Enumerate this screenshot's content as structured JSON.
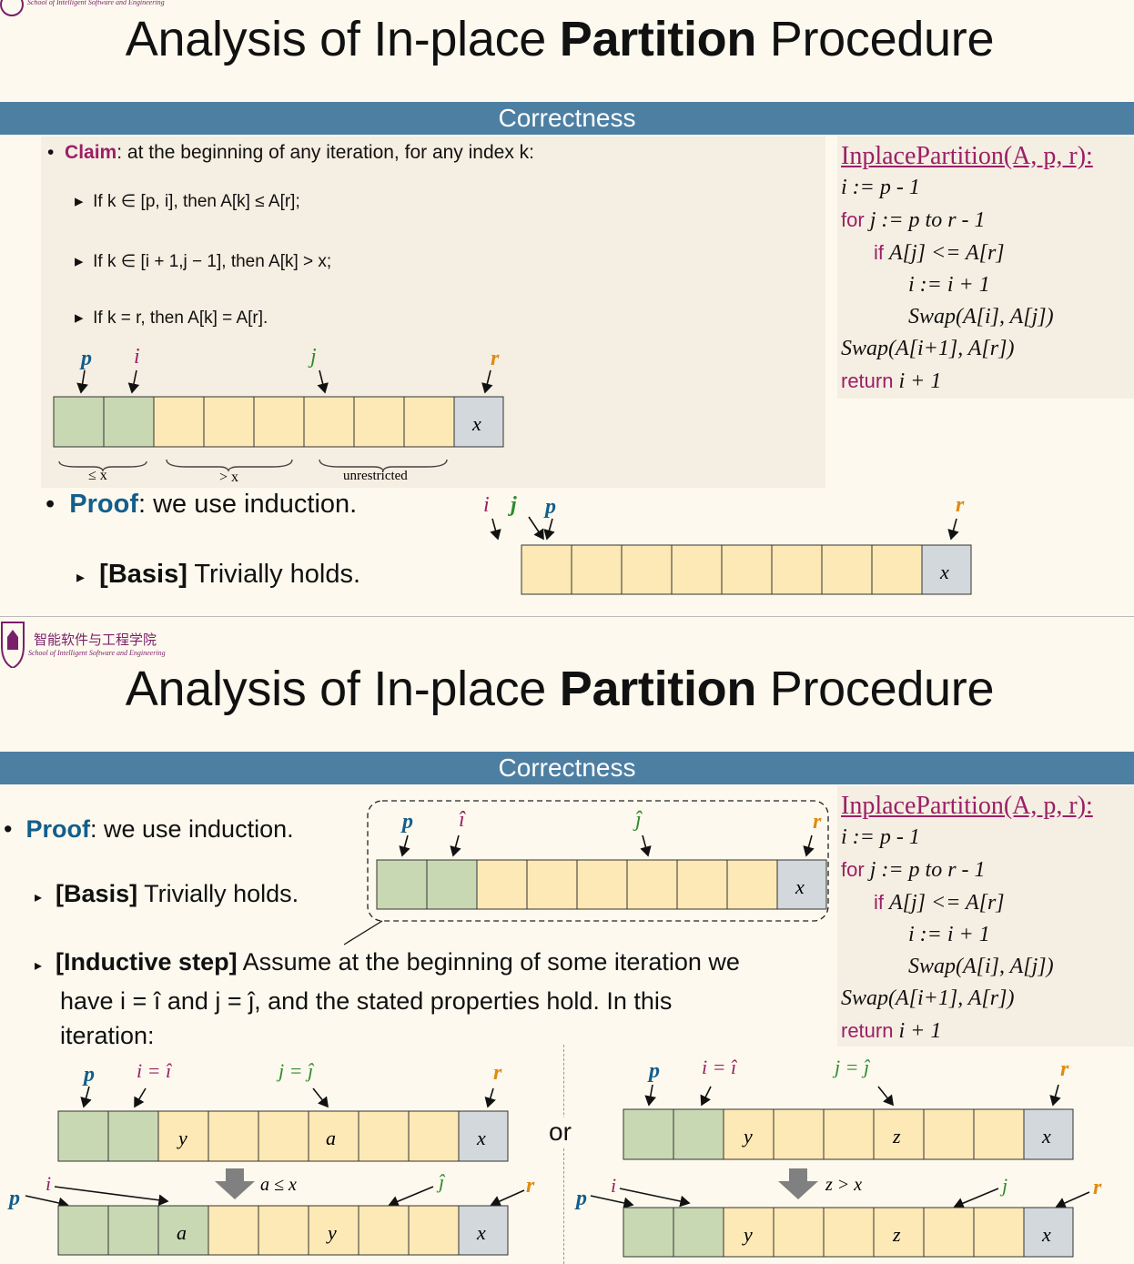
{
  "logo": {
    "name_cn": "智能软件与工程学院",
    "name_en": "School of Intelligent Software and Engineering"
  },
  "slides": [
    {
      "title_normal": "Analysis of In-place ",
      "title_bold": "Partition",
      "title_end": " Procedure",
      "section": "Correctness",
      "claim_label": "Claim",
      "claim_text": ": at the beginning of any iteration, for any index k:",
      "bullets": [
        "If k ∈ [p, i], then A[k] ≤ A[r];",
        "If k ∈ [i + 1,j − 1], then A[k] > x;",
        "If k = r, then A[k] = A[r]."
      ],
      "braces": [
        "≤ x",
        "> x",
        "unrestricted"
      ],
      "proof_label": "Proof",
      "proof_text": ": we use induction.",
      "basis_label": "[Basis]",
      "basis_text": " Trivially holds."
    },
    {
      "title_normal": "Analysis of In-place ",
      "title_bold": "Partition",
      "title_end": " Procedure",
      "section": "Correctness",
      "proof_label": "Proof",
      "proof_text": ": we use induction.",
      "basis_label": "[Basis]",
      "basis_text": " Trivially holds.",
      "inductive_label": "[Inductive step]",
      "inductive_line1": " Assume at the beginning of some iteration we",
      "inductive_line2": "have i = î and j = ĵ,  and the stated properties hold. In this",
      "inductive_line3": "iteration:",
      "or_text": "or",
      "cond_left": "a ≤ x",
      "cond_right": "z > x"
    }
  ],
  "pseudocode": {
    "header": "InplacePartition(A, p, r):",
    "lines": [
      {
        "kw": "",
        "text": "i := p - 1"
      },
      {
        "kw": "for",
        "text": "j := p to r - 1"
      },
      {
        "kw": "if",
        "text": "A[j] <= A[r]"
      },
      {
        "kw": "",
        "text": "i := i + 1"
      },
      {
        "kw": "",
        "text": "Swap(A[i], A[j])"
      },
      {
        "kw": "",
        "text": "Swap(A[i+1], A[r])"
      },
      {
        "kw": "return",
        "text": "i + 1"
      }
    ]
  },
  "colors": {
    "green": "#c8d8b3",
    "yellow": "#fde9b6",
    "gray": "#d2d8dc",
    "pink": "#9b1f66",
    "blue": "#125e8c",
    "pgreen": "#2f8a2b",
    "orange": "#e08a12"
  }
}
